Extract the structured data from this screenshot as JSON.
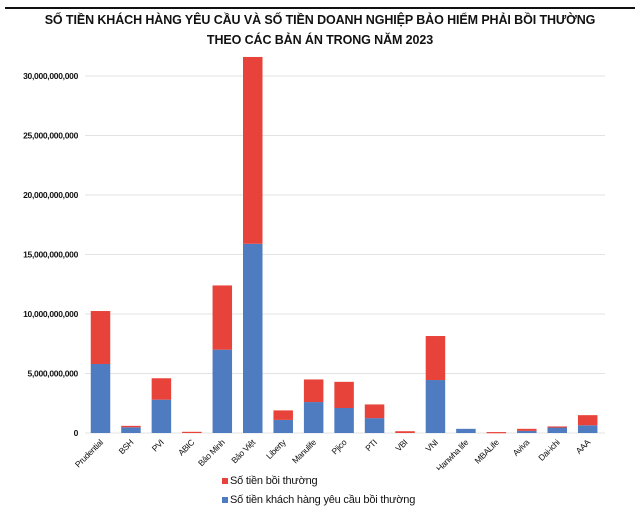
{
  "header": {
    "title_line1": "SỐ TIỀN KHÁCH HÀNG YÊU CẦU VÀ SỐ TIỀN DOANH NGHIỆP BẢO HIỂM PHẢI BỒI THƯỜNG",
    "title_line2": "THEO CÁC BẢN ÁN TRONG NĂM 2023"
  },
  "colors": {
    "red": "#E8433A",
    "blue": "#4F7BC1",
    "grid": "#E3E3E3"
  },
  "chart_data": {
    "type": "bar",
    "stacked": true,
    "title": "SỐ TIỀN KHÁCH HÀNG YÊU CẦU VÀ SỐ TIỀN DOANH NGHIỆP BẢO HIỂM PHẢI BỒI THƯỜNG THEO CÁC BẢN ÁN TRONG NĂM 2023",
    "xlabel": "",
    "ylabel": "",
    "ylim": [
      0,
      30000000000
    ],
    "yticks": [
      0,
      5000000000,
      10000000000,
      15000000000,
      20000000000,
      25000000000,
      30000000000
    ],
    "ytick_labels": [
      "0",
      "5,000,000,000",
      "10,000,000,000",
      "15,000,000,000",
      "20,000,000,000",
      "25,000,000,000",
      "30,000,000,000"
    ],
    "grid": true,
    "legend_position": "bottom",
    "categories": [
      "Prudential",
      "BSH",
      "PVI",
      "ABIC",
      "Bảo Minh",
      "Bảo Việt",
      "Liberty",
      "Manulife",
      "Pjico",
      "PTI",
      "VBI",
      "VNI",
      "Hanwha life",
      "MBALife",
      "Aviva",
      "Dai-ichi",
      "AAA"
    ],
    "series": [
      {
        "name": "Số tiền khách hàng yêu cầu bồi thường",
        "color": "#4F7BC1",
        "values": [
          5800000000,
          480000000,
          2800000000,
          0,
          7000000000,
          15900000000,
          1100000000,
          2600000000,
          2100000000,
          1250000000,
          0,
          4450000000,
          350000000,
          0,
          180000000,
          500000000,
          650000000
        ]
      },
      {
        "name": "Số tiền bồi thường",
        "color": "#E8433A",
        "values": [
          4450000000,
          120000000,
          1800000000,
          100000000,
          5400000000,
          15700000000,
          800000000,
          1900000000,
          2200000000,
          1150000000,
          150000000,
          3700000000,
          0,
          80000000,
          170000000,
          50000000,
          850000000
        ]
      }
    ]
  },
  "legend": {
    "items": [
      {
        "label": "Số tiền bồi thường",
        "color": "#E8433A"
      },
      {
        "label": "Số tiền khách hàng yêu cầu bồi thường",
        "color": "#4F7BC1"
      }
    ]
  }
}
